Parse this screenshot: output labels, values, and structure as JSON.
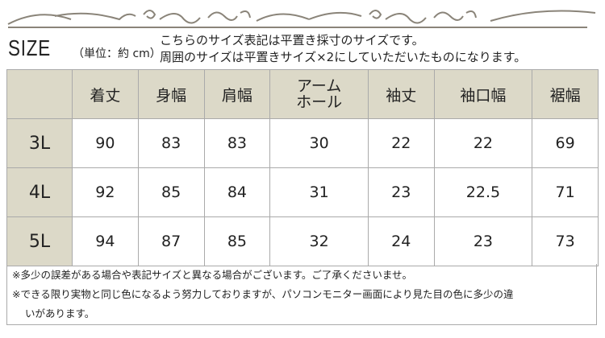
{
  "title": "SIZE",
  "unit": "（単位：約 cm）",
  "description": [
    "こちらのサイズ表記は平置き採寸のサイズです。",
    "周囲のサイズは平置きサイズ×2にしていただいたものになります。"
  ],
  "table": {
    "headers": [
      "",
      "着丈",
      "身幅",
      "肩幅",
      "アーム\nホール",
      "袖丈",
      "袖口幅",
      "裾幅"
    ],
    "rows": [
      {
        "size": "3L",
        "values": [
          "90",
          "83",
          "83",
          "30",
          "22",
          "22",
          "69"
        ]
      },
      {
        "size": "4L",
        "values": [
          "92",
          "85",
          "84",
          "31",
          "23",
          "22.5",
          "71"
        ]
      },
      {
        "size": "5L",
        "values": [
          "94",
          "87",
          "85",
          "32",
          "24",
          "23",
          "73"
        ]
      }
    ]
  },
  "notes": [
    "※多少の誤差がある場合や表記サイズと異なる場合がございます。ご了承くださいませ。",
    "※できる限り実物と同じ色になるよう努力しておりますが、パソコンモニター画面により見た目の色に多少の違",
    "いがあります。"
  ],
  "colors": {
    "header_bg": "#dcd9c8",
    "ornament": "#8a8479",
    "border": "#aaaaaa"
  }
}
